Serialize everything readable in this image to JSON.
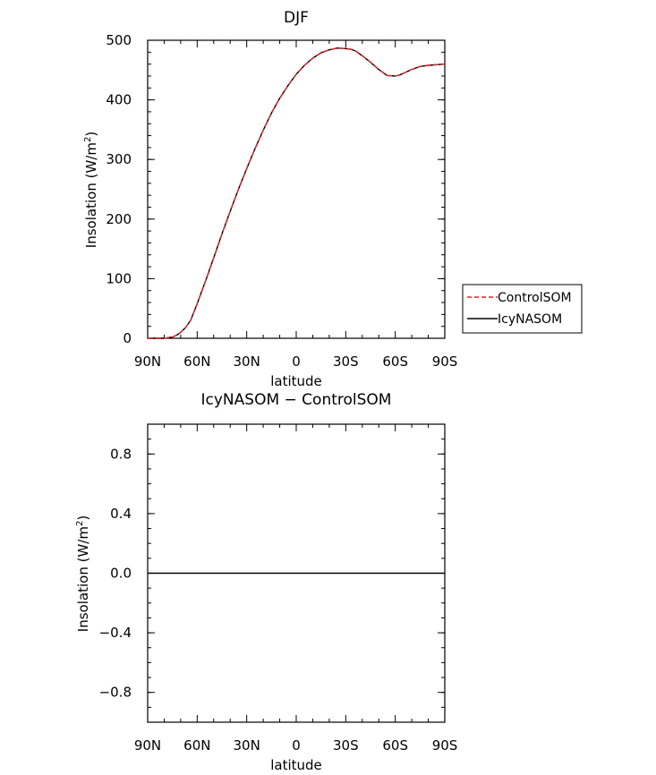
{
  "chart_data": [
    {
      "type": "line",
      "title": "DJF",
      "xlabel": "latitude",
      "ylabel": "Insolation (W/m",
      "ylabel_sup": "2",
      "ylabel_end": ")",
      "x_ticks": [
        "90N",
        "60N",
        "30N",
        "0",
        "30S",
        "60S",
        "90S"
      ],
      "x_tick_values": [
        90,
        60,
        30,
        0,
        -30,
        -60,
        -90
      ],
      "xlim": [
        90,
        -90
      ],
      "y_ticks": [
        "0",
        "100",
        "200",
        "300",
        "400",
        "500"
      ],
      "y_tick_values": [
        0,
        100,
        200,
        300,
        400,
        500
      ],
      "ylim": [
        0,
        500
      ],
      "legend_position": "right",
      "x": [
        90,
        80,
        75,
        72,
        70,
        67,
        64,
        60,
        55,
        50,
        45,
        40,
        35,
        30,
        25,
        20,
        15,
        10,
        5,
        0,
        -5,
        -10,
        -15,
        -20,
        -25,
        -30,
        -33,
        -36,
        -40,
        -45,
        -50,
        -55,
        -60,
        -63,
        -66,
        -70,
        -75,
        -80,
        -85,
        -90
      ],
      "series": [
        {
          "name": "ControlSOM",
          "color": "#e8202a",
          "style": "dashed",
          "values": [
            0,
            0,
            2,
            6,
            10,
            18,
            30,
            58,
            96,
            135,
            175,
            213,
            250,
            285,
            318,
            349,
            378,
            403,
            424,
            443,
            458,
            470,
            479,
            484,
            487,
            486,
            485,
            482,
            474,
            463,
            451,
            441,
            440,
            442,
            446,
            451,
            456,
            458,
            459,
            460
          ]
        },
        {
          "name": "IcyNASOM",
          "color": "#000000",
          "style": "solid",
          "values": [
            0,
            0,
            2,
            6,
            10,
            18,
            30,
            58,
            96,
            135,
            175,
            213,
            250,
            285,
            318,
            349,
            378,
            403,
            424,
            443,
            458,
            470,
            479,
            484,
            487,
            486,
            485,
            482,
            474,
            463,
            451,
            441,
            440,
            442,
            446,
            451,
            456,
            458,
            459,
            460
          ]
        }
      ]
    },
    {
      "type": "line",
      "title": "IcyNASOM − ControlSOM",
      "xlabel": "latitude",
      "ylabel": "Insolation (W/m",
      "ylabel_sup": "2",
      "ylabel_end": ")",
      "x_ticks": [
        "90N",
        "60N",
        "30N",
        "0",
        "30S",
        "60S",
        "90S"
      ],
      "x_tick_values": [
        90,
        60,
        30,
        0,
        -30,
        -60,
        -90
      ],
      "xlim": [
        90,
        -90
      ],
      "y_ticks": [
        "−0.8",
        "−0.4",
        "0.0",
        "0.4",
        "0.8"
      ],
      "y_tick_values": [
        -0.8,
        -0.4,
        0.0,
        0.4,
        0.8
      ],
      "ylim": [
        -1,
        1
      ],
      "x": [
        90,
        -90
      ],
      "series": [
        {
          "color": "#000000",
          "style": "solid",
          "values": [
            0,
            0
          ]
        }
      ]
    }
  ]
}
